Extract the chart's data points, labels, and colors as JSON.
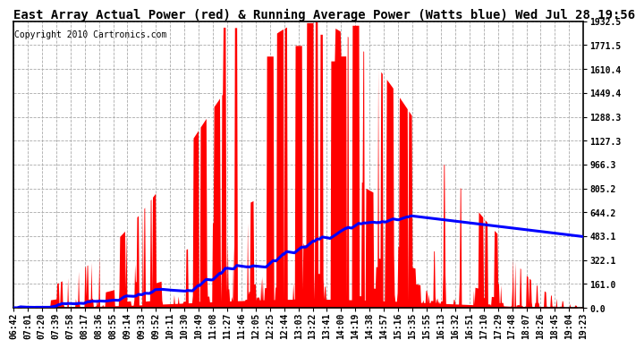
{
  "title": "East Array Actual Power (red) & Running Average Power (Watts blue) Wed Jul 28 19:56",
  "copyright": "Copyright 2010 Cartronics.com",
  "yticks": [
    0.0,
    161.0,
    322.1,
    483.1,
    644.2,
    805.2,
    966.3,
    1127.3,
    1288.3,
    1449.4,
    1610.4,
    1771.5,
    1932.5
  ],
  "ymax": 1932.5,
  "ymin": 0.0,
  "bg_color": "#ffffff",
  "plot_bg_color": "#ffffff",
  "grid_color": "#aaaaaa",
  "title_color": "#000000",
  "fill_color": "#ff0000",
  "line_color": "#0000ff",
  "border_color": "#000000",
  "xtick_labels": [
    "06:42",
    "07:01",
    "07:20",
    "07:39",
    "07:58",
    "08:17",
    "08:36",
    "08:55",
    "09:14",
    "09:33",
    "09:52",
    "10:11",
    "10:30",
    "10:49",
    "11:08",
    "11:27",
    "11:46",
    "12:05",
    "12:25",
    "12:44",
    "13:03",
    "13:22",
    "13:41",
    "14:00",
    "14:19",
    "14:38",
    "14:57",
    "15:16",
    "15:35",
    "15:55",
    "16:13",
    "16:32",
    "16:51",
    "17:10",
    "17:29",
    "17:48",
    "18:07",
    "18:26",
    "18:45",
    "19:04",
    "19:23"
  ],
  "title_fontsize": 10,
  "copyright_fontsize": 7,
  "tick_fontsize": 7
}
